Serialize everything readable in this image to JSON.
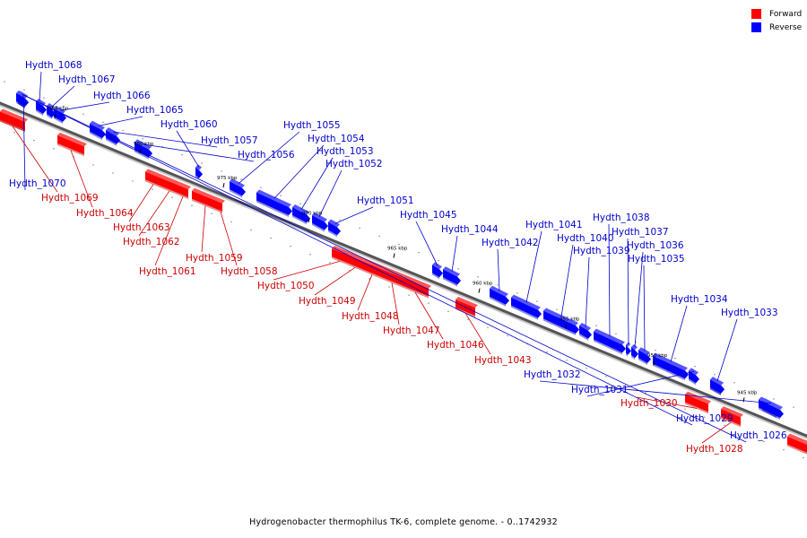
{
  "legend": {
    "forward_label": "Forward",
    "reverse_label": "Reverse",
    "forward_color": "#ff0000",
    "reverse_color": "#0000ff"
  },
  "caption": "Hydrogenobacter thermophilus TK-6, complete genome. - 0..1742932",
  "scale_ticks": [
    "985 kbp",
    "980 kbp",
    "975 kbp",
    "970 kbp",
    "965 kbp",
    "960 kbp",
    "955 kbp",
    "950 kbp",
    "945 kbp"
  ],
  "genes": [
    {
      "name": "Hydth_1068",
      "strand": "reverse"
    },
    {
      "name": "Hydth_1067",
      "strand": "reverse"
    },
    {
      "name": "Hydth_1066",
      "strand": "reverse"
    },
    {
      "name": "Hydth_1065",
      "strand": "reverse"
    },
    {
      "name": "Hydth_1060",
      "strand": "reverse"
    },
    {
      "name": "Hydth_1057",
      "strand": "reverse"
    },
    {
      "name": "Hydth_1056",
      "strand": "reverse"
    },
    {
      "name": "Hydth_1055",
      "strand": "reverse"
    },
    {
      "name": "Hydth_1054",
      "strand": "reverse"
    },
    {
      "name": "Hydth_1053",
      "strand": "reverse"
    },
    {
      "name": "Hydth_1052",
      "strand": "reverse"
    },
    {
      "name": "Hydth_1051",
      "strand": "reverse"
    },
    {
      "name": "Hydth_1045",
      "strand": "reverse"
    },
    {
      "name": "Hydth_1044",
      "strand": "reverse"
    },
    {
      "name": "Hydth_1042",
      "strand": "reverse"
    },
    {
      "name": "Hydth_1041",
      "strand": "reverse"
    },
    {
      "name": "Hydth_1040",
      "strand": "reverse"
    },
    {
      "name": "Hydth_1039",
      "strand": "reverse"
    },
    {
      "name": "Hydth_1038",
      "strand": "reverse"
    },
    {
      "name": "Hydth_1037",
      "strand": "reverse"
    },
    {
      "name": "Hydth_1036",
      "strand": "reverse"
    },
    {
      "name": "Hydth_1035",
      "strand": "reverse"
    },
    {
      "name": "Hydth_1034",
      "strand": "reverse"
    },
    {
      "name": "Hydth_1033",
      "strand": "reverse"
    },
    {
      "name": "Hydth_1032",
      "strand": "reverse"
    },
    {
      "name": "Hydth_1031",
      "strand": "reverse"
    },
    {
      "name": "Hydth_1029",
      "strand": "reverse"
    },
    {
      "name": "Hydth_1026",
      "strand": "reverse"
    },
    {
      "name": "Hydth_1070",
      "strand": "reverse"
    },
    {
      "name": "Hydth_1069",
      "strand": "forward"
    },
    {
      "name": "Hydth_1064",
      "strand": "forward"
    },
    {
      "name": "Hydth_1063",
      "strand": "forward"
    },
    {
      "name": "Hydth_1062",
      "strand": "forward"
    },
    {
      "name": "Hydth_1061",
      "strand": "forward"
    },
    {
      "name": "Hydth_1059",
      "strand": "forward"
    },
    {
      "name": "Hydth_1058",
      "strand": "forward"
    },
    {
      "name": "Hydth_1050",
      "strand": "forward"
    },
    {
      "name": "Hydth_1049",
      "strand": "forward"
    },
    {
      "name": "Hydth_1048",
      "strand": "forward"
    },
    {
      "name": "Hydth_1047",
      "strand": "forward"
    },
    {
      "name": "Hydth_1046",
      "strand": "forward"
    },
    {
      "name": "Hydth_1043",
      "strand": "forward"
    },
    {
      "name": "Hydth_1030",
      "strand": "forward"
    },
    {
      "name": "Hydth_1028",
      "strand": "forward"
    }
  ]
}
